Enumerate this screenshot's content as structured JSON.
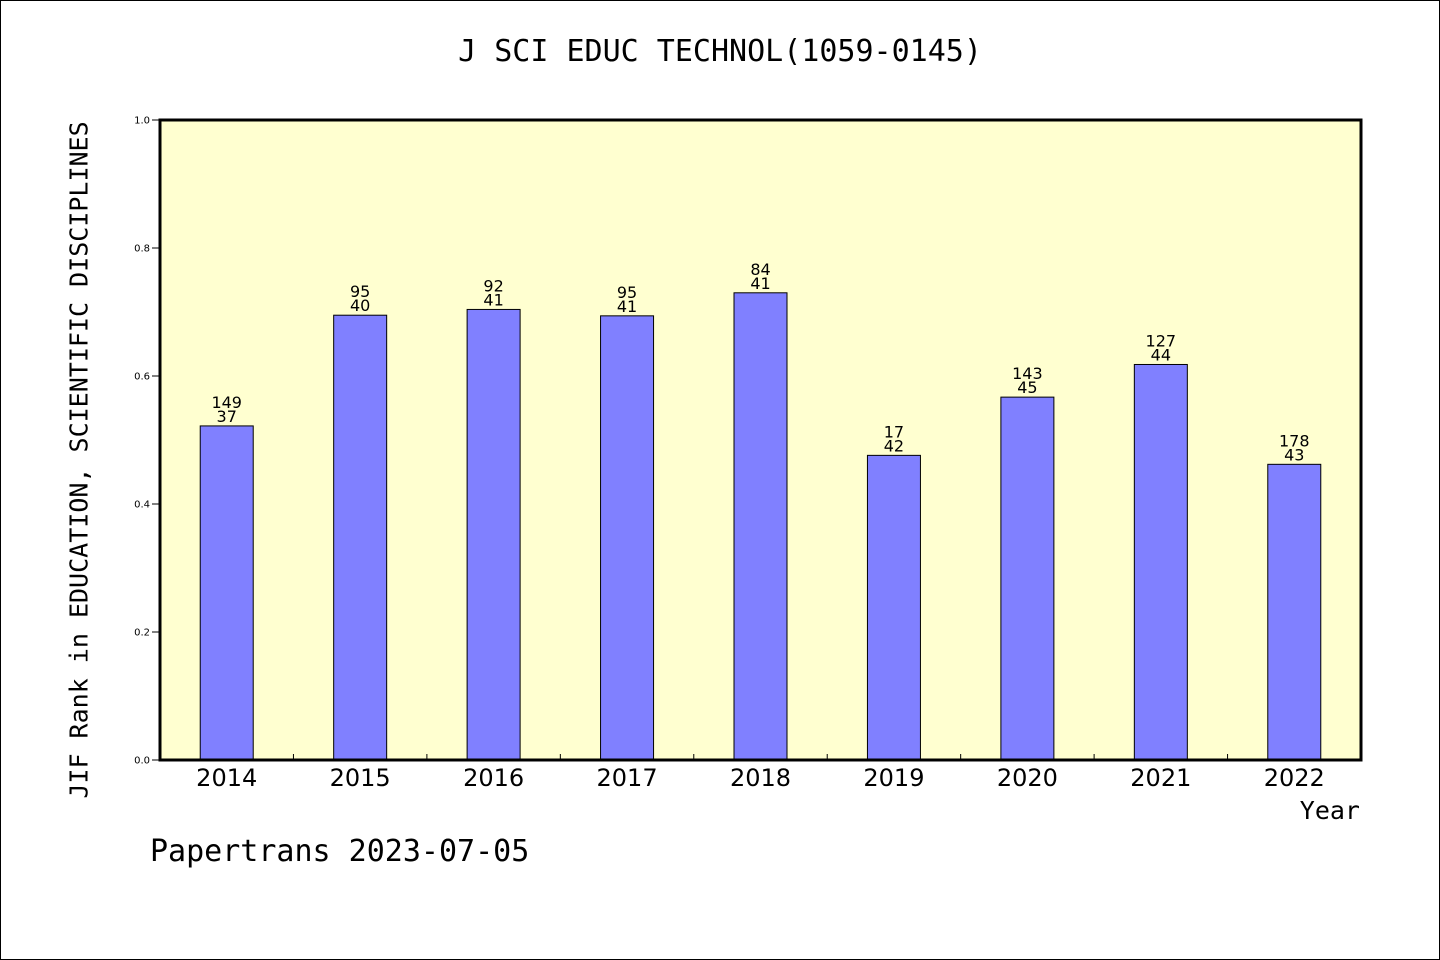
{
  "chart_data": {
    "type": "bar",
    "title": "J SCI EDUC TECHNOL(1059-0145)",
    "xlabel": "Year",
    "ylabel": "JIF Rank in EDUCATION, SCIENTIFIC DISCIPLINES",
    "ylim": [
      0,
      1.0
    ],
    "yticks": [
      "0.0",
      "0.2",
      "0.4",
      "0.6",
      "0.8",
      "1.0"
    ],
    "categories": [
      "2014",
      "2015",
      "2016",
      "2017",
      "2018",
      "2019",
      "2020",
      "2021",
      "2022"
    ],
    "values": [
      0.522,
      0.695,
      0.704,
      0.694,
      0.73,
      0.476,
      0.567,
      0.618,
      0.462
    ],
    "labels_top": [
      "149",
      "95",
      "92",
      "95",
      "84",
      "17",
      "143",
      "127",
      "178"
    ],
    "labels_bottom": [
      "37",
      "40",
      "41",
      "41",
      "41",
      "42",
      "45",
      "44",
      "43"
    ],
    "grid": false,
    "colors": {
      "bar": "#8080ff",
      "plot_bg": "#ffffd0"
    }
  },
  "footer": "Papertrans 2023-07-05"
}
